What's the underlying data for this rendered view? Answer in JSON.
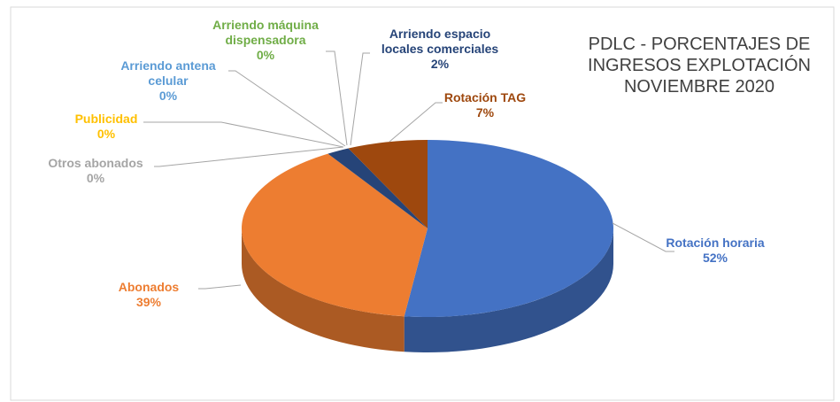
{
  "chart_data": {
    "type": "pie3d",
    "title": "PDLC - PORCENTAJES DE INGRESOS EXPLOTACIÓN NOVIEMBRE 2020",
    "categories": [
      "Rotación horaria",
      "Abonados",
      "Otros abonados",
      "Publicidad",
      "Arriendo antena celular",
      "Arriendo máquina dispensadora",
      "Arriendo espacio locales comerciales",
      "Rotación TAG"
    ],
    "values": [
      52,
      39,
      0,
      0,
      0,
      0,
      2,
      7
    ],
    "value_labels": [
      "52%",
      "39%",
      "0%",
      "0%",
      "0%",
      "0%",
      "2%",
      "7%"
    ],
    "colors": [
      "#4472c4",
      "#ed7d31",
      "#a5a5a5",
      "#ffc000",
      "#5b9bd5",
      "#70ad47",
      "#264478",
      "#9e480e"
    ]
  }
}
